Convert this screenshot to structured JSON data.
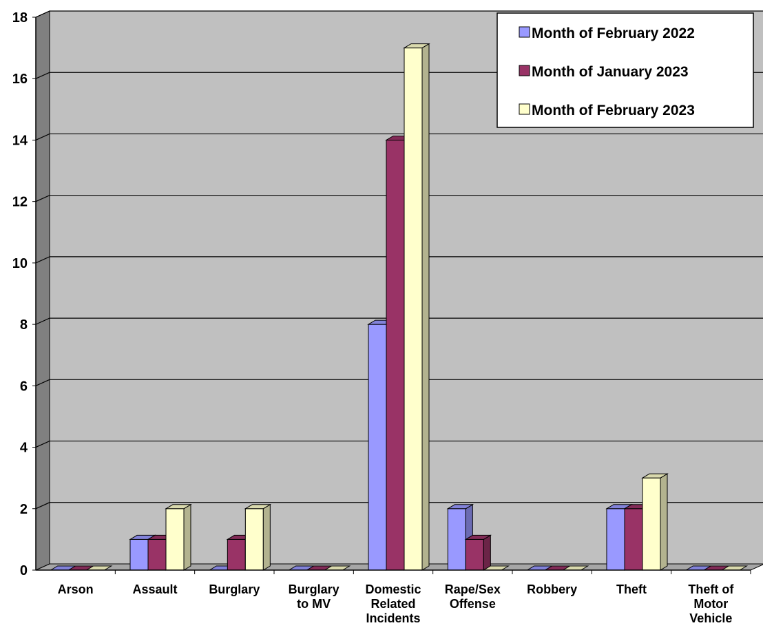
{
  "chart_data": {
    "type": "bar",
    "style": "3d-clustered-column",
    "categories": [
      [
        "Arson"
      ],
      [
        "Assault"
      ],
      [
        "Burglary"
      ],
      [
        "Burglary",
        "to MV"
      ],
      [
        "Domestic",
        "Related",
        "Incidents"
      ],
      [
        "Rape/Sex",
        "Offense"
      ],
      [
        "Robbery"
      ],
      [
        "Theft"
      ],
      [
        "Theft of",
        "Motor",
        "Vehicle"
      ]
    ],
    "series": [
      {
        "name": "Month of February 2022",
        "color": "#9999ff",
        "values": [
          0,
          1,
          0,
          0,
          8,
          2,
          0,
          2,
          0
        ]
      },
      {
        "name": "Month of January 2023",
        "color": "#993366",
        "values": [
          0,
          1,
          1,
          0,
          14,
          1,
          0,
          2,
          0
        ]
      },
      {
        "name": "Month of February 2023",
        "color": "#ffffcc",
        "values": [
          0,
          2,
          2,
          0,
          17,
          0,
          0,
          3,
          0
        ]
      }
    ],
    "ylim": [
      0,
      18
    ],
    "yticks": [
      "0",
      "2",
      "4",
      "6",
      "8",
      "10",
      "12",
      "14",
      "16",
      "18"
    ],
    "grid": true,
    "legend": "top-right",
    "colors": {
      "plot_wall": "#c0c0c0",
      "side_wall": "#808080",
      "floor": "#a6a6a6"
    }
  }
}
